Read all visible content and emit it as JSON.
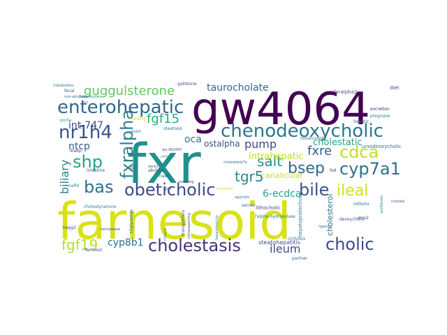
{
  "words": [
    {
      "text": "farnesoid",
      "color": "#d8e219"
    },
    {
      "text": "fxr",
      "color": "#21908d"
    },
    {
      "text": "gw4064",
      "color": "#440154"
    },
    {
      "text": "chenodeoxycholic",
      "color": "#2a788e"
    },
    {
      "text": "enterohepatic",
      "color": "#31688e"
    },
    {
      "text": "nr1h4",
      "color": "#3b528b"
    },
    {
      "text": "obeticholic",
      "color": "#3e4a89"
    },
    {
      "text": "cholestasis",
      "color": "#46327e"
    },
    {
      "text": "cholic",
      "color": "#3e4a89"
    },
    {
      "text": "cdca",
      "color": "#c2df23"
    },
    {
      "text": "cyp7a1",
      "color": "#2c728e"
    },
    {
      "text": "bile",
      "color": "#3b528b"
    },
    {
      "text": "fgf19",
      "color": "#b5de2b"
    },
    {
      "text": "guggulsterone",
      "color": "#5ec962"
    },
    {
      "text": "shp",
      "color": "#20a386"
    },
    {
      "text": "bas",
      "color": "#2d708e"
    },
    {
      "text": "fxralpha",
      "color": "#277f8e"
    },
    {
      "text": "tgr5",
      "color": "#228b8d"
    },
    {
      "text": "bsep",
      "color": "#31688e"
    },
    {
      "text": "fgf15",
      "color": "#28ae80"
    },
    {
      "text": "ileal",
      "color": "#d2e21b"
    },
    {
      "text": "salt",
      "color": "#21918c"
    },
    {
      "text": "fxre",
      "color": "#355f8d"
    },
    {
      "text": "pump",
      "color": "#3e4989"
    },
    {
      "text": "biliary",
      "color": "#25848e"
    },
    {
      "text": "int-747",
      "color": "#414487"
    },
    {
      "text": "cyp8b1",
      "color": "#2e6e8e"
    },
    {
      "text": "ileum",
      "color": "#3e4a89"
    },
    {
      "text": "ntcp",
      "color": "#39568c"
    },
    {
      "text": "taurocholate",
      "color": "#31688e"
    },
    {
      "text": "oca",
      "color": "#2a788e"
    },
    {
      "text": "ostalpha",
      "color": "#3b528b"
    },
    {
      "text": "6-ecdca",
      "color": "#21a585"
    },
    {
      "text": "cholestatic",
      "color": "#1fa187"
    },
    {
      "text": "intrahepatic",
      "color": "#b8de29"
    },
    {
      "text": "canalicular",
      "color": "#bddf26"
    },
    {
      "text": "cholesterol",
      "color": "#2c728e"
    },
    {
      "text": "steatohepatitis",
      "color": "#3e4989"
    },
    {
      "text": "hepatoprotective",
      "color": "#2a778e"
    },
    {
      "text": "cholestyramine",
      "color": "#25838e"
    },
    {
      "text": "fxralpha2",
      "color": "#3b528b"
    },
    {
      "text": "diet",
      "color": "#3e4989"
    },
    {
      "text": "pregnane",
      "color": "#25848e"
    },
    {
      "text": "ursodeoxycholic",
      "color": "#2c728e"
    },
    {
      "text": "nonalcoholic",
      "color": "#2d708e"
    },
    {
      "text": "lithocholic",
      "color": "#3e4989"
    },
    {
      "text": "7alpha-hydroxylase",
      "color": "#2e6e8e"
    },
    {
      "text": "deoxycholic",
      "color": "#3b528b"
    },
    {
      "text": "cirrhosis",
      "color": "#2c728e"
    },
    {
      "text": "partner",
      "color": "#355f8d"
    },
    {
      "text": "gallstone",
      "color": "#3e4a89"
    },
    {
      "text": "intestine",
      "color": "#39568c"
    },
    {
      "text": "lipid",
      "color": "#2c728e"
    },
    {
      "text": "abcb11",
      "color": "#3e4989"
    },
    {
      "text": "steatosis",
      "color": "#2a788e"
    },
    {
      "text": "nash",
      "color": "#39568c"
    },
    {
      "text": "hepatic",
      "color": "#31688e"
    },
    {
      "text": "excretion",
      "color": "#482173"
    },
    {
      "text": "metabolites",
      "color": "#2a788e"
    },
    {
      "text": "fecal",
      "color": "#3b528b"
    },
    {
      "text": "hepatocytes",
      "color": "#25838e"
    },
    {
      "text": "non-alcoholic",
      "color": "#2e6e8e"
    },
    {
      "text": "feeding",
      "color": "#dde318"
    },
    {
      "text": "porta",
      "color": "#1fa088"
    },
    {
      "text": "ibabp",
      "color": "#3e4a89"
    },
    {
      "text": "sensor",
      "color": "#2c728e"
    },
    {
      "text": "mrp2",
      "color": "#3e4989"
    },
    {
      "text": "fed",
      "color": "#3b528b"
    },
    {
      "text": "hepg2",
      "color": "#3e4a89"
    },
    {
      "text": "cholate",
      "color": "#25858e"
    },
    {
      "text": "transporters",
      "color": "#3e4a89"
    },
    {
      "text": "triglyceride",
      "color": "#2c728e"
    },
    {
      "text": "cotransporting",
      "color": "#3e4989"
    },
    {
      "text": "hepatotoxicity",
      "color": "#25838e"
    },
    {
      "text": "abcb4",
      "color": "#2a788e"
    },
    {
      "text": "pxr",
      "color": "#3b528b"
    },
    {
      "text": "cirrhotic",
      "color": "#25838e"
    },
    {
      "text": "farnesol",
      "color": "#3e4a89"
    },
    {
      "text": "hemostasis",
      "color": "#3e4989"
    },
    {
      "text": "ligands",
      "color": "#2a788e"
    },
    {
      "text": "antifibrotic",
      "color": "#25838e"
    },
    {
      "text": "wy-362450",
      "color": "#3e4a89"
    },
    {
      "text": "abcb1",
      "color": "#31688e"
    },
    {
      "text": "agonists",
      "color": "#2c728e"
    },
    {
      "text": "lowering",
      "color": "#3e4989"
    },
    {
      "text": "synthesis",
      "color": "#dde318"
    },
    {
      "text": "nafld",
      "color": "#25838e"
    },
    {
      "text": "cholesterol7a",
      "color": "#31688e"
    },
    {
      "text": "crystals",
      "color": "#3b528b"
    },
    {
      "text": "ir-i",
      "color": "#3e4a89"
    },
    {
      "text": "ostbeta",
      "color": "#25838e"
    }
  ]
}
